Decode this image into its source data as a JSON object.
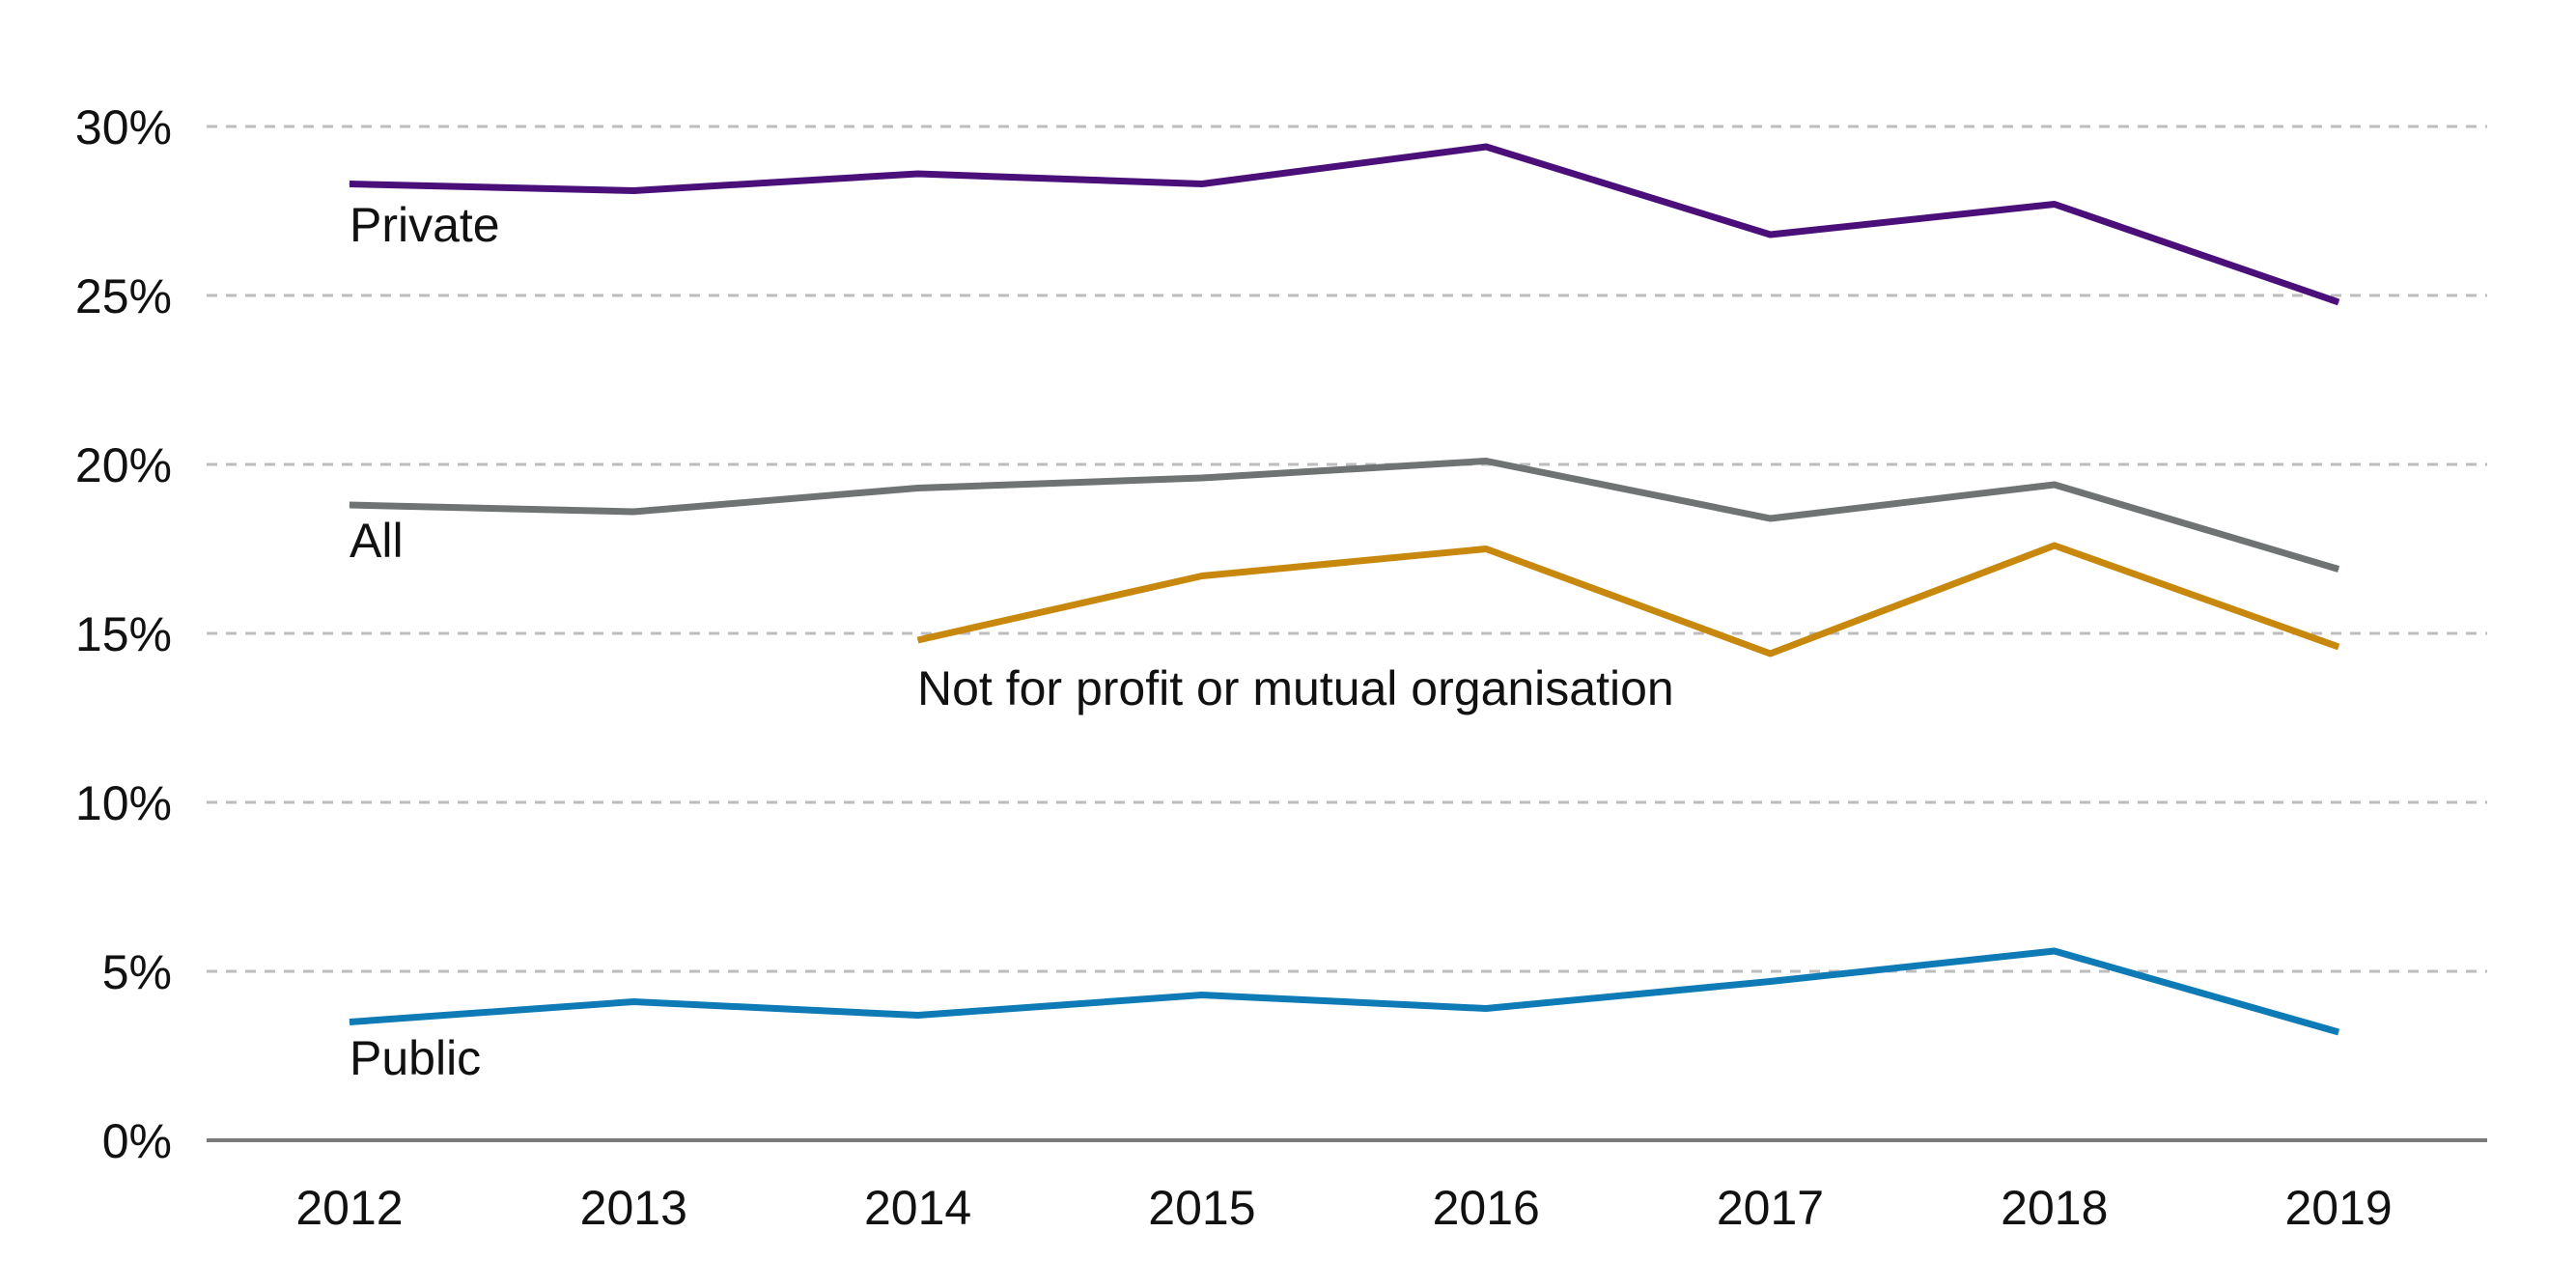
{
  "chart_data": {
    "type": "line",
    "title": "",
    "xlabel": "",
    "ylabel": "",
    "x": [
      "2012",
      "2013",
      "2014",
      "2015",
      "2016",
      "2017",
      "2018",
      "2019"
    ],
    "ylim": [
      0,
      30
    ],
    "y_ticks": [
      0,
      5,
      10,
      15,
      20,
      25,
      30
    ],
    "y_tick_labels": [
      "0%",
      "5%",
      "10%",
      "15%",
      "20%",
      "25%",
      "30%"
    ],
    "grid": true,
    "legend": "inline labels",
    "series": [
      {
        "name": "Private",
        "color": "#4b0f7a",
        "values": [
          28.3,
          28.1,
          28.6,
          28.3,
          29.4,
          26.8,
          27.7,
          24.8
        ]
      },
      {
        "name": "All",
        "color": "#707374",
        "values": [
          18.8,
          18.6,
          19.3,
          19.6,
          20.1,
          18.4,
          19.4,
          16.9
        ]
      },
      {
        "name": "Not for profit or mutual organisation",
        "color": "#c8880e",
        "values": [
          null,
          null,
          14.8,
          16.7,
          17.5,
          14.4,
          17.6,
          14.6
        ]
      },
      {
        "name": "Public",
        "color": "#0e7ab6",
        "values": [
          3.5,
          4.1,
          3.7,
          4.3,
          3.9,
          4.7,
          5.6,
          3.2
        ]
      }
    ]
  }
}
